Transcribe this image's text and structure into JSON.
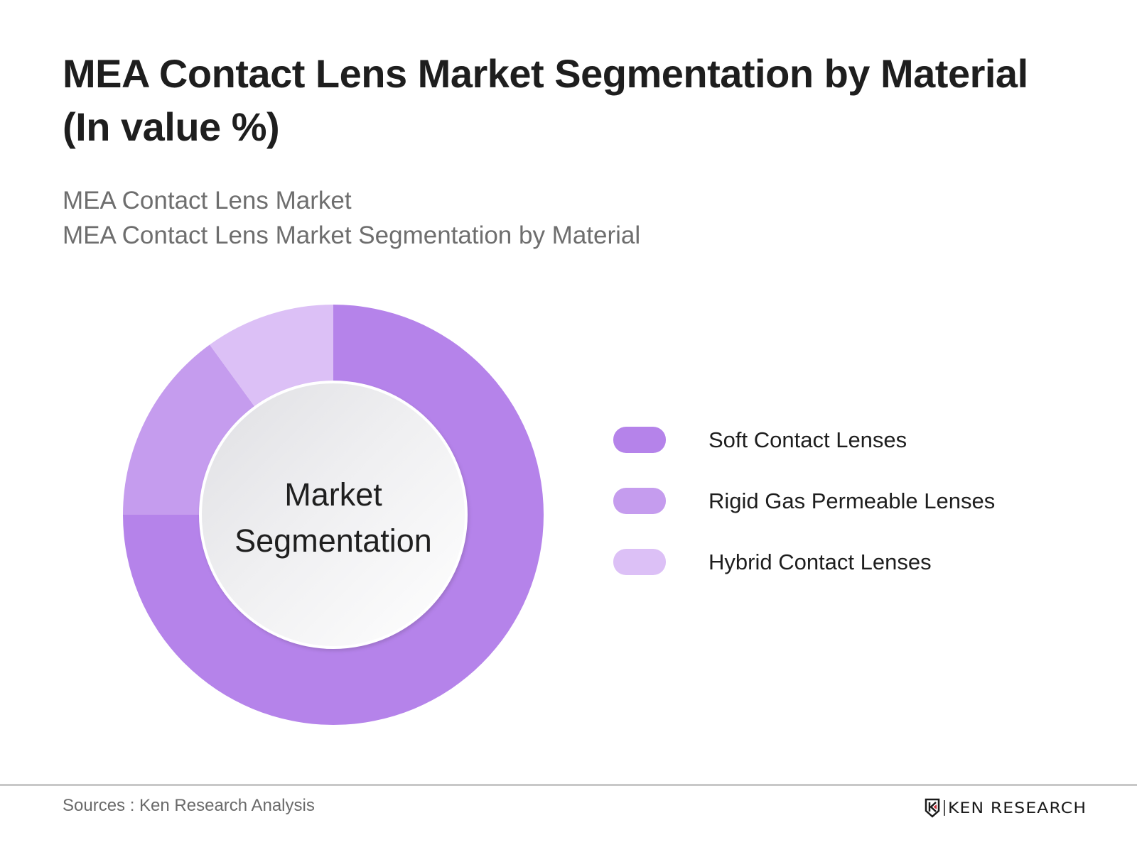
{
  "header": {
    "title": "MEA Contact Lens Market Segmentation by Material (In value %)",
    "subtitle_lines": [
      "MEA Contact Lens Market",
      "MEA Contact Lens Market Segmentation by Material"
    ]
  },
  "donut": {
    "center_label_lines": [
      "Market",
      "Segmentation"
    ]
  },
  "legend": {
    "items": [
      {
        "label": "Soft Contact Lenses",
        "color": "#B583EA"
      },
      {
        "label": "Rigid Gas Permeable Lenses",
        "color": "#C59CEE"
      },
      {
        "label": "Hybrid Contact Lenses",
        "color": "#DCC0F6"
      }
    ]
  },
  "footer": {
    "sources": "Sources : Ken Research Analysis",
    "logo_text": "KEN RESEARCH"
  },
  "chart_data": {
    "type": "pie",
    "variant": "donut",
    "title": "MEA Contact Lens Market Segmentation by Material (In value %)",
    "subtitle": "MEA Contact Lens Market / MEA Contact Lens Market Segmentation by Material",
    "center_label": "Market Segmentation",
    "categories": [
      "Soft Contact Lenses",
      "Rigid Gas Permeable Lenses",
      "Hybrid Contact Lenses"
    ],
    "values": [
      75,
      15,
      10
    ],
    "unit": "%",
    "colors": [
      "#B583EA",
      "#C59CEE",
      "#DCC0F6"
    ],
    "start_angle_deg": 0,
    "direction": "clockwise",
    "data_labels_shown": false,
    "legend_position": "right"
  }
}
